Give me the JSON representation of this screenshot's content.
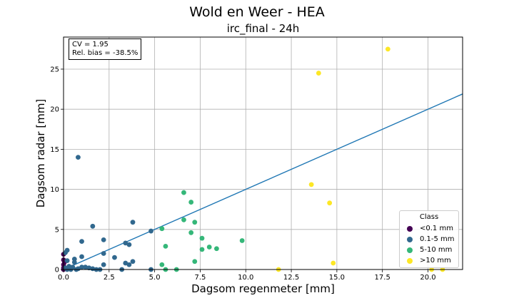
{
  "figure": {
    "suptitle": "Wold en Weer - HEA",
    "title": "irc_final - 24h",
    "stats": {
      "cv": "CV = 1.95",
      "bias": "Rel. bias = -38.5%"
    }
  },
  "chart_data": {
    "type": "scatter",
    "title": "irc_final - 24h",
    "xlabel": "Dagsom regenmeter [mm]",
    "ylabel": "Dagsom radar [mm]",
    "xlim": [
      0,
      21.9
    ],
    "ylim": [
      0,
      29
    ],
    "xticks": [
      0.0,
      2.5,
      5.0,
      7.5,
      10.0,
      12.5,
      15.0,
      17.5,
      20.0
    ],
    "xtick_labels": [
      "0.0",
      "2.5",
      "5.0",
      "7.5",
      "10.0",
      "12.5",
      "15.0",
      "17.5",
      "20.0"
    ],
    "yticks": [
      0,
      5,
      10,
      15,
      20,
      25
    ],
    "ytick_labels": [
      "0",
      "5",
      "10",
      "15",
      "20",
      "25"
    ],
    "grid": true,
    "legend_position": "lower-right",
    "legend_title": "Class",
    "fit_line": {
      "slope": 1.0,
      "intercept": 0.0,
      "color": "#1f77b4"
    },
    "series": [
      {
        "name": "<0.1 mm",
        "color": "#440154",
        "points": [
          [
            0.0,
            1.9
          ],
          [
            0.0,
            1.2
          ],
          [
            0.0,
            0.6
          ],
          [
            0.0,
            0.2
          ],
          [
            0.0,
            0.0
          ],
          [
            0.05,
            0.9
          ]
        ]
      },
      {
        "name": "0.1-5 mm",
        "color": "#31688e",
        "points": [
          [
            0.8,
            14.0
          ],
          [
            1.6,
            5.4
          ],
          [
            3.8,
            5.9
          ],
          [
            4.8,
            4.8
          ],
          [
            2.2,
            3.7
          ],
          [
            1.0,
            3.5
          ],
          [
            3.4,
            3.3
          ],
          [
            3.6,
            3.1
          ],
          [
            0.2,
            2.4
          ],
          [
            0.1,
            2.1
          ],
          [
            2.2,
            2.0
          ],
          [
            1.0,
            1.6
          ],
          [
            2.8,
            1.5
          ],
          [
            0.6,
            1.3
          ],
          [
            0.2,
            1.1
          ],
          [
            3.8,
            1.0
          ],
          [
            0.6,
            0.9
          ],
          [
            3.4,
            0.8
          ],
          [
            3.6,
            0.6
          ],
          [
            2.2,
            0.6
          ],
          [
            0.3,
            0.4
          ],
          [
            0.5,
            0.3
          ],
          [
            1.0,
            0.3
          ],
          [
            1.2,
            0.3
          ],
          [
            1.4,
            0.2
          ],
          [
            0.1,
            0.2
          ],
          [
            0.8,
            0.1
          ],
          [
            1.6,
            0.1
          ],
          [
            0.4,
            0.0
          ],
          [
            0.7,
            0.0
          ],
          [
            1.8,
            0.0
          ],
          [
            2.0,
            0.0
          ],
          [
            3.2,
            0.0
          ],
          [
            4.8,
            0.0
          ],
          [
            0.2,
            0.0
          ]
        ]
      },
      {
        "name": "5-10 mm",
        "color": "#35b779",
        "points": [
          [
            6.6,
            9.6
          ],
          [
            7.0,
            8.4
          ],
          [
            6.6,
            6.2
          ],
          [
            7.2,
            5.9
          ],
          [
            5.4,
            5.1
          ],
          [
            7.0,
            4.6
          ],
          [
            7.6,
            3.9
          ],
          [
            9.8,
            3.6
          ],
          [
            5.6,
            2.9
          ],
          [
            8.0,
            2.8
          ],
          [
            8.4,
            2.6
          ],
          [
            7.6,
            2.5
          ],
          [
            7.2,
            1.0
          ],
          [
            5.4,
            0.6
          ],
          [
            6.2,
            0.0
          ],
          [
            5.6,
            0.0
          ]
        ]
      },
      {
        "name": ">10 mm",
        "color": "#fde725",
        "points": [
          [
            17.8,
            27.5
          ],
          [
            14.0,
            24.5
          ],
          [
            13.6,
            10.6
          ],
          [
            14.6,
            8.3
          ],
          [
            14.8,
            0.8
          ],
          [
            11.8,
            0.0
          ],
          [
            20.2,
            0.0
          ],
          [
            20.8,
            0.0
          ]
        ]
      }
    ]
  }
}
